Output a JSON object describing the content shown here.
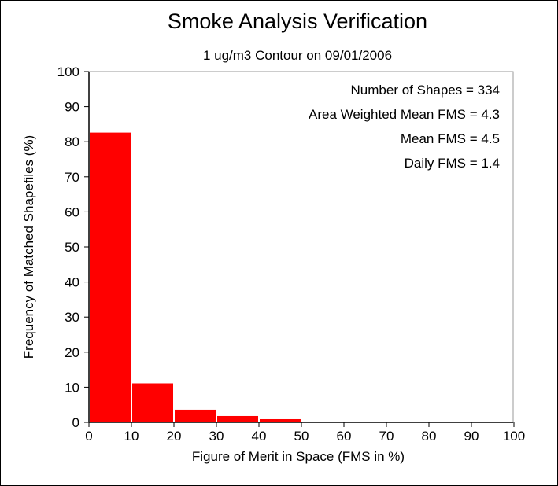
{
  "chart_data": {
    "type": "bar",
    "title": "Smoke Analysis Verification",
    "subtitle": "1 ug/m3 Contour on 09/01/2006",
    "xlabel": "Figure of Merit in Space (FMS in %)",
    "ylabel": "Frequency of Matched Shapefiles (%)",
    "xlim": [
      0,
      110
    ],
    "ylim": [
      0,
      100
    ],
    "xticks": [
      0,
      10,
      20,
      30,
      40,
      50,
      60,
      70,
      80,
      90,
      100
    ],
    "yticks": [
      0,
      10,
      20,
      30,
      40,
      50,
      60,
      70,
      80,
      90,
      100
    ],
    "bin_width": 10,
    "bins": [
      {
        "from": 0,
        "to": 10,
        "value": 82.6
      },
      {
        "from": 10,
        "to": 20,
        "value": 11.1
      },
      {
        "from": 20,
        "to": 30,
        "value": 3.6
      },
      {
        "from": 30,
        "to": 40,
        "value": 1.8
      },
      {
        "from": 40,
        "to": 50,
        "value": 0.9
      },
      {
        "from": 50,
        "to": 60,
        "value": 0
      },
      {
        "from": 60,
        "to": 70,
        "value": 0
      },
      {
        "from": 70,
        "to": 80,
        "value": 0
      },
      {
        "from": 80,
        "to": 90,
        "value": 0
      },
      {
        "from": 90,
        "to": 100,
        "value": 0
      },
      {
        "from": 100,
        "to": 110,
        "value": 0
      }
    ],
    "bar_color": "#ff0000",
    "annotations": [
      "Number of Shapes = 334",
      "Area Weighted Mean FMS = 4.3",
      "Mean FMS = 4.5",
      "Daily FMS = 1.4"
    ],
    "grid": false,
    "legend": "none"
  }
}
